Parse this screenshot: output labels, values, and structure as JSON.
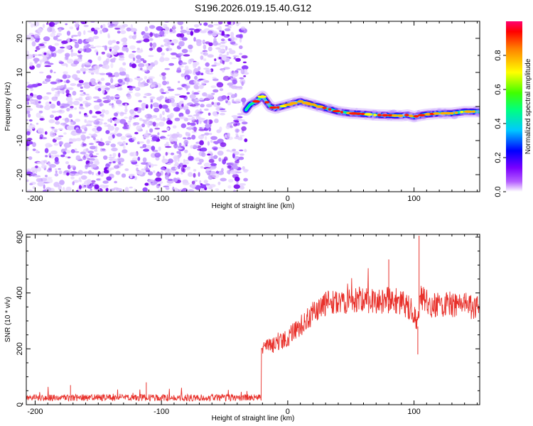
{
  "title": "S196.2026.019.15.40.G12",
  "colors": {
    "snr_line": "#e8302a",
    "axis": "#000000",
    "colormap": [
      "#ffffff",
      "#9a00ff",
      "#0000ff",
      "#00c8ff",
      "#00ff80",
      "#40ff00",
      "#ffff00",
      "#ff8000",
      "#ff0000",
      "#ff0060"
    ]
  },
  "chart_data": [
    {
      "type": "heatmap",
      "name": "spectrogram",
      "xlabel": "Height of straight line (km)",
      "ylabel": "Frequency (Hz)",
      "xlim": [
        -207,
        152
      ],
      "ylim": [
        -25,
        25
      ],
      "xticks": [
        -200,
        -100,
        0,
        100
      ],
      "yticks": [
        -20,
        -10,
        0,
        10,
        20
      ],
      "noise_region_x": [
        -207,
        -33
      ],
      "signal_start_x": -33,
      "ridge": {
        "x": [
          -33,
          -30,
          -25,
          -20,
          -17,
          -14,
          -10,
          -5,
          0,
          5,
          10,
          15,
          20,
          25,
          30,
          40,
          50,
          60,
          70,
          80,
          90,
          95,
          100,
          105,
          110,
          120,
          130,
          140,
          152
        ],
        "y": [
          -1.0,
          0.5,
          1.5,
          3.0,
          1.5,
          0.0,
          -0.5,
          0.0,
          0.5,
          1.0,
          1.5,
          1.0,
          0.5,
          0.0,
          -0.5,
          -1.5,
          -2.0,
          -2.2,
          -2.5,
          -2.6,
          -2.7,
          -2.5,
          -3.0,
          -2.6,
          -2.3,
          -2.0,
          -2.0,
          -1.5,
          -1.5
        ]
      },
      "colorbar": {
        "label": "Normalized spectral amplitude",
        "range": [
          0.0,
          1.0
        ],
        "ticks": [
          0.0,
          0.2,
          0.4,
          0.6,
          0.8
        ],
        "tick_labels": [
          "0.0",
          "0.2",
          "0.4",
          "0.6",
          "0.8"
        ]
      }
    },
    {
      "type": "line",
      "name": "snr",
      "xlabel": "Height of straight line (km)",
      "ylabel": "SNR (10 * v/v)",
      "xlim": [
        -207,
        152
      ],
      "ylim": [
        0,
        610
      ],
      "xticks": [
        -200,
        -100,
        0,
        100
      ],
      "yticks": [
        0,
        200,
        400,
        600
      ],
      "baseline": {
        "x": [
          -207,
          -150,
          -100,
          -50,
          -21
        ],
        "y": [
          25,
          25,
          25,
          25,
          25
        ]
      },
      "trend": {
        "x": [
          -21,
          -18,
          -10,
          0,
          10,
          20,
          30,
          40,
          50,
          60,
          70,
          80,
          90,
          100,
          103,
          105,
          108,
          115,
          130,
          152
        ],
        "y": [
          200,
          205,
          215,
          240,
          280,
          330,
          360,
          370,
          375,
          380,
          370,
          375,
          370,
          330,
          280,
          400,
          370,
          355,
          360,
          350
        ]
      },
      "spikes": [
        {
          "x": 80,
          "y": 520
        },
        {
          "x": 104,
          "y": 605
        },
        {
          "x": 103,
          "y": 180
        },
        {
          "x": -172,
          "y": 70
        },
        {
          "x": -112,
          "y": 80
        }
      ]
    }
  ]
}
